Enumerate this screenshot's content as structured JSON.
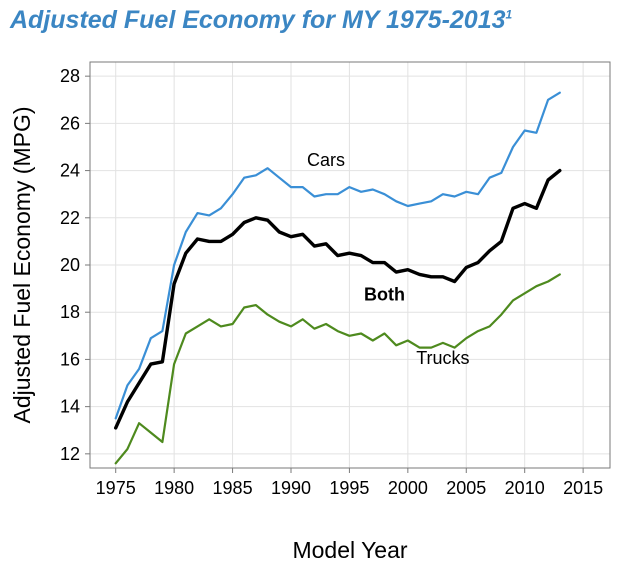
{
  "title": "Adjusted Fuel Economy for MY 1975-2013",
  "title_superscript": "1",
  "colors": {
    "title": "#3b86c3",
    "cars": "#3a8fd6",
    "both": "#000000",
    "trucks": "#4e8a1e",
    "grid": "#e2e2e2",
    "frame": "#7a7a7a"
  },
  "chart_data": {
    "type": "line",
    "xlabel": "Model Year",
    "ylabel": "Adjusted Fuel Economy (MPG)",
    "xlim": [
      1972.8,
      2017.3
    ],
    "ylim": [
      11.4,
      28.6
    ],
    "xticks": [
      1975,
      1980,
      1985,
      1990,
      1995,
      2000,
      2005,
      2010,
      2015
    ],
    "yticks": [
      12,
      14,
      16,
      18,
      20,
      22,
      24,
      26,
      28
    ],
    "grid": true,
    "x": [
      1975,
      1976,
      1977,
      1978,
      1979,
      1980,
      1981,
      1982,
      1983,
      1984,
      1985,
      1986,
      1987,
      1988,
      1989,
      1990,
      1991,
      1992,
      1993,
      1994,
      1995,
      1996,
      1997,
      1998,
      1999,
      2000,
      2001,
      2002,
      2003,
      2004,
      2005,
      2006,
      2007,
      2008,
      2009,
      2010,
      2011,
      2012,
      2013
    ],
    "series": [
      {
        "name": "Cars",
        "key": "cars",
        "values": [
          13.5,
          14.9,
          15.6,
          16.9,
          17.2,
          20.0,
          21.4,
          22.2,
          22.1,
          22.4,
          23.0,
          23.7,
          23.8,
          24.1,
          23.7,
          23.3,
          23.3,
          22.9,
          23.0,
          23.0,
          23.3,
          23.1,
          23.2,
          23.0,
          22.7,
          22.5,
          22.6,
          22.7,
          23.0,
          22.9,
          23.1,
          23.0,
          23.7,
          23.9,
          25.0,
          25.7,
          25.6,
          27.0,
          27.3
        ]
      },
      {
        "name": "Both",
        "key": "both",
        "values": [
          13.1,
          14.2,
          15.0,
          15.8,
          15.9,
          19.2,
          20.5,
          21.1,
          21.0,
          21.0,
          21.3,
          21.8,
          22.0,
          21.9,
          21.4,
          21.2,
          21.3,
          20.8,
          20.9,
          20.4,
          20.5,
          20.4,
          20.1,
          20.1,
          19.7,
          19.8,
          19.6,
          19.5,
          19.5,
          19.3,
          19.9,
          20.1,
          20.6,
          21.0,
          22.4,
          22.6,
          22.4,
          23.6,
          24.0
        ]
      },
      {
        "name": "Trucks",
        "key": "trucks",
        "values": [
          11.6,
          12.2,
          13.3,
          12.9,
          12.5,
          15.8,
          17.1,
          17.4,
          17.7,
          17.4,
          17.5,
          18.2,
          18.3,
          17.9,
          17.6,
          17.4,
          17.7,
          17.3,
          17.5,
          17.2,
          17.0,
          17.1,
          16.8,
          17.1,
          16.6,
          16.8,
          16.5,
          16.5,
          16.7,
          16.5,
          16.9,
          17.2,
          17.4,
          17.9,
          18.5,
          18.8,
          19.1,
          19.3,
          19.6
        ]
      }
    ],
    "annotations": [
      {
        "text": "Cars",
        "series": "cars"
      },
      {
        "text": "Both",
        "series": "both",
        "bold": true
      },
      {
        "text": "Trucks",
        "series": "trucks"
      }
    ]
  }
}
